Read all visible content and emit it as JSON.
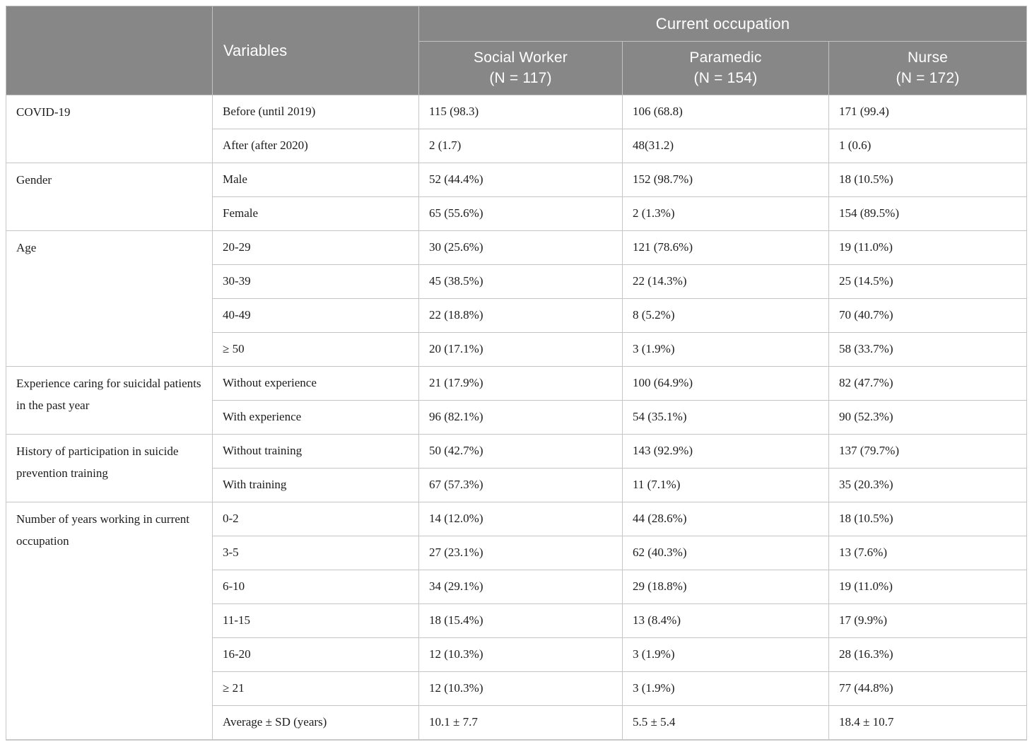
{
  "table": {
    "header": {
      "corner_label": "",
      "variables_label": "Variables",
      "occupation_label": "Current occupation",
      "occupation_columns": [
        {
          "name": "Social Worker",
          "n_label": "(N = 117)"
        },
        {
          "name": "Paramedic",
          "n_label": "(N = 154)"
        },
        {
          "name": "Nurse",
          "n_label": "(N = 172)"
        }
      ]
    },
    "groups": [
      {
        "category": "COVID-19",
        "rows": [
          {
            "variable": "Before (until 2019)",
            "values": [
              "115 (98.3)",
              "106 (68.8)",
              "171 (99.4)"
            ]
          },
          {
            "variable": "After (after 2020)",
            "values": [
              "2 (1.7)",
              "48(31.2)",
              "1 (0.6)"
            ]
          }
        ]
      },
      {
        "category": "Gender",
        "rows": [
          {
            "variable": "Male",
            "values": [
              "52 (44.4%)",
              "152 (98.7%)",
              "18 (10.5%)"
            ]
          },
          {
            "variable": "Female",
            "values": [
              "65 (55.6%)",
              "2 (1.3%)",
              "154 (89.5%)"
            ]
          }
        ]
      },
      {
        "category": "Age",
        "rows": [
          {
            "variable": "20-29",
            "values": [
              "30 (25.6%)",
              "121 (78.6%)",
              "19 (11.0%)"
            ]
          },
          {
            "variable": "30-39",
            "values": [
              "45 (38.5%)",
              "22 (14.3%)",
              "25 (14.5%)"
            ]
          },
          {
            "variable": "40-49",
            "values": [
              "22 (18.8%)",
              "8 (5.2%)",
              "70 (40.7%)"
            ]
          },
          {
            "variable": "≥ 50",
            "values": [
              "20 (17.1%)",
              "3 (1.9%)",
              "58 (33.7%)"
            ]
          }
        ]
      },
      {
        "category": "Experience caring for suicidal patients in the past year",
        "rows": [
          {
            "variable": "Without experience",
            "values": [
              "21 (17.9%)",
              "100 (64.9%)",
              "82 (47.7%)"
            ]
          },
          {
            "variable": "With experience",
            "values": [
              "96 (82.1%)",
              "54 (35.1%)",
              "90 (52.3%)"
            ]
          }
        ]
      },
      {
        "category": "History of participation in suicide prevention training",
        "rows": [
          {
            "variable": "Without training",
            "values": [
              "50 (42.7%)",
              "143 (92.9%)",
              "137 (79.7%)"
            ]
          },
          {
            "variable": "With training",
            "values": [
              "67 (57.3%)",
              "11 (7.1%)",
              "35 (20.3%)"
            ]
          }
        ]
      },
      {
        "category": "Number of years working in current occupation",
        "rows": [
          {
            "variable": "0-2",
            "values": [
              "14 (12.0%)",
              "44 (28.6%)",
              "18 (10.5%)"
            ]
          },
          {
            "variable": "3-5",
            "values": [
              "27 (23.1%)",
              "62 (40.3%)",
              "13 (7.6%)"
            ]
          },
          {
            "variable": "6-10",
            "values": [
              "34 (29.1%)",
              "29 (18.8%)",
              "19 (11.0%)"
            ]
          },
          {
            "variable": "11-15",
            "values": [
              "18 (15.4%)",
              "13 (8.4%)",
              "17 (9.9%)"
            ]
          },
          {
            "variable": "16-20",
            "values": [
              "12 (10.3%)",
              "3 (1.9%)",
              "28 (16.3%)"
            ]
          },
          {
            "variable": "≥ 21",
            "values": [
              "12 (10.3%)",
              "3 (1.9%)",
              "77 (44.8%)"
            ]
          },
          {
            "variable": "Average ± SD (years)",
            "values": [
              "10.1 ± 7.7",
              "5.5 ± 5.4",
              "18.4 ± 10.7"
            ]
          }
        ]
      }
    ]
  },
  "colors": {
    "header_background": "#878787",
    "header_text": "#ffffff",
    "body_text": "#1c1c1c",
    "grid_line": "#c6c6c6"
  }
}
